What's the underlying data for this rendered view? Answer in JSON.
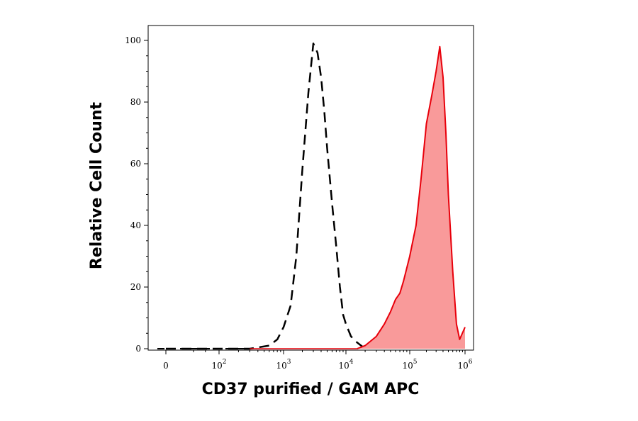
{
  "chart_data": {
    "type": "area",
    "title": "",
    "xlabel": "CD37 purified / GAM APC",
    "ylabel": "Relative Cell Count",
    "x_scale": "biexponential",
    "ylim": [
      0,
      100
    ],
    "y_ticks": [
      "0",
      "20",
      "40",
      "60",
      "80",
      "100"
    ],
    "x_ticks": [
      {
        "base": "0",
        "exp": ""
      },
      {
        "base": "10",
        "exp": "2"
      },
      {
        "base": "10",
        "exp": "3"
      },
      {
        "base": "10",
        "exp": "4"
      },
      {
        "base": "10",
        "exp": "5"
      },
      {
        "base": "10",
        "exp": "6"
      }
    ],
    "grid": false,
    "series": [
      {
        "style": "dashed",
        "color": "#000000",
        "fill": "none",
        "x": [
          0,
          300,
          600,
          800,
          1000,
          1300,
          1600,
          2000,
          2500,
          3000,
          3500,
          4000,
          4500,
          5000,
          6000,
          7000,
          8000,
          9000,
          10000,
          12000,
          15000,
          20000
        ],
        "y": [
          0,
          0,
          1,
          3,
          7,
          14,
          30,
          58,
          83,
          99,
          96,
          88,
          77,
          65,
          47,
          33,
          20,
          11,
          8,
          4,
          2,
          0
        ]
      },
      {
        "style": "solid",
        "color": "#e8000b",
        "fill": "#f99a9a",
        "x": [
          15000,
          20000,
          30000,
          40000,
          50000,
          60000,
          70000,
          80000,
          100000,
          130000,
          160000,
          200000,
          250000,
          300000,
          350000,
          400000,
          450000,
          500000,
          600000,
          700000,
          800000,
          1000000
        ],
        "y": [
          0,
          1,
          4,
          8,
          12,
          16,
          18,
          22,
          30,
          40,
          55,
          73,
          82,
          90,
          98,
          88,
          70,
          50,
          25,
          8,
          3,
          7
        ]
      }
    ]
  }
}
